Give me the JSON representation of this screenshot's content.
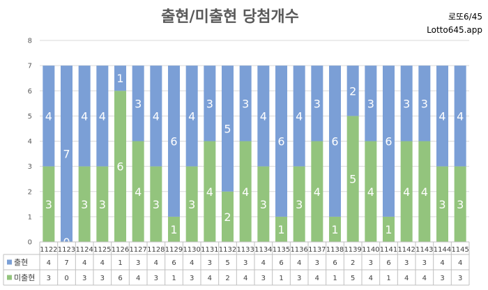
{
  "brand": {
    "line1": "로또6/45",
    "line2": "Lotto645.app"
  },
  "colors": {
    "drawn": "#7b9fd6",
    "not_drawn": "#93c47d",
    "grid": "#d9d9d9",
    "table_border": "#bfbfbf"
  },
  "chart_data": {
    "type": "bar",
    "stacked": true,
    "title": "출현/미출현 당첨개수",
    "categories": [
      "1122",
      "1123",
      "1124",
      "1125",
      "1126",
      "1127",
      "1128",
      "1129",
      "1130",
      "1131",
      "1132",
      "1133",
      "1134",
      "1135",
      "1136",
      "1137",
      "1138",
      "1139",
      "1140",
      "1141",
      "1142",
      "1143",
      "1144",
      "1145"
    ],
    "series": [
      {
        "name": "미출현",
        "color": "#93c47d",
        "values": [
          3,
          0,
          3,
          3,
          6,
          4,
          3,
          1,
          3,
          4,
          2,
          4,
          3,
          1,
          3,
          4,
          1,
          5,
          4,
          1,
          4,
          4,
          3,
          3
        ]
      },
      {
        "name": "출현",
        "color": "#7b9fd6",
        "values": [
          4,
          7,
          4,
          4,
          1,
          3,
          4,
          6,
          4,
          3,
          5,
          3,
          4,
          6,
          4,
          3,
          6,
          2,
          3,
          6,
          3,
          3,
          4,
          4
        ]
      }
    ],
    "ylim": [
      0,
      8
    ],
    "yticks": [
      0,
      1,
      2,
      3,
      4,
      5,
      6,
      7,
      8
    ],
    "grid": true,
    "legend": "data-table-bottom"
  }
}
